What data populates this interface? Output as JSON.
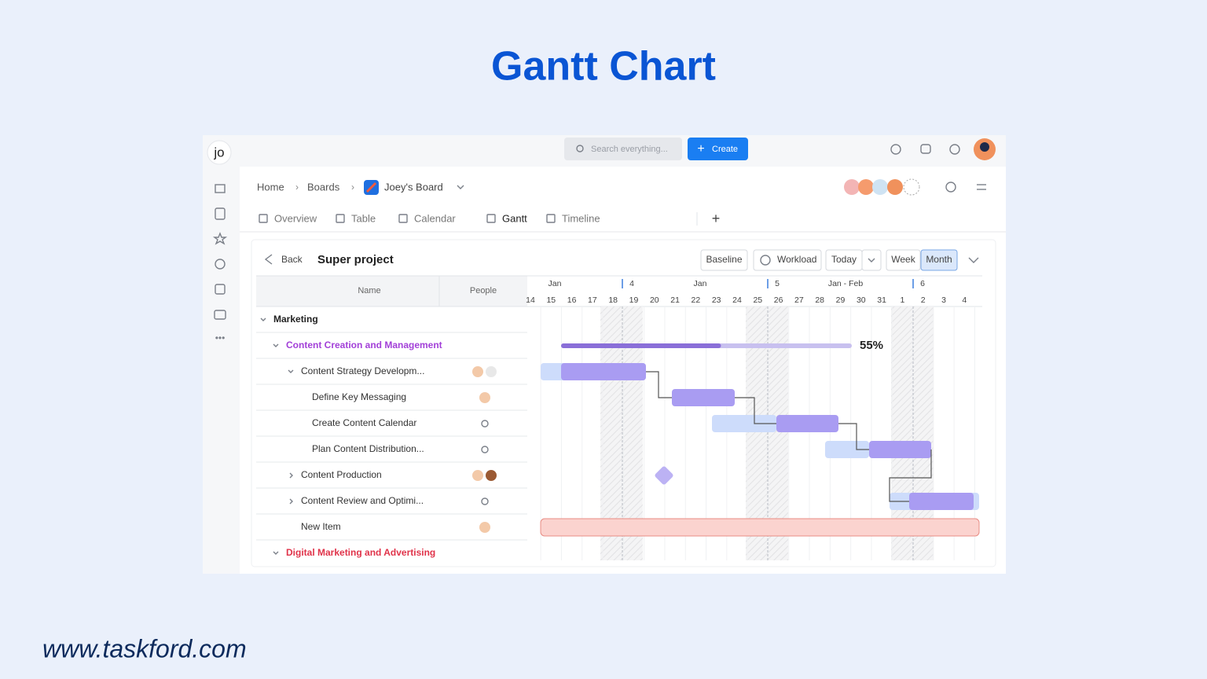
{
  "header": {
    "title": "Gantt Chart"
  },
  "footer": {
    "url": "www.taskford.com"
  },
  "app": {
    "logo": "jo",
    "search": "Search everything...",
    "create": "Create",
    "breadcrumb": [
      "Home",
      "Boards",
      "Joey's Board"
    ],
    "tabs": [
      "Overview",
      "Table",
      "Calendar",
      "Gantt",
      "Timeline"
    ],
    "toolbar": {
      "back": "Back",
      "project": "Super project",
      "buttons": [
        "Baseline",
        "Workload",
        "Today",
        "Week",
        "Month"
      ]
    },
    "columns": [
      "Name",
      "People"
    ],
    "timeline": {
      "groups": [
        {
          "month": "Jan",
          "week": "4"
        },
        {
          "month": "Jan",
          "week": "5"
        },
        {
          "month": "Jan - Feb",
          "week": "6"
        }
      ],
      "days": [
        "14",
        "15",
        "16",
        "17",
        "18",
        "19",
        "20",
        "21",
        "22",
        "23",
        "24",
        "25",
        "26",
        "27",
        "28",
        "29",
        "30",
        "31",
        "1",
        "2",
        "3",
        "4"
      ]
    },
    "rows": [
      "Marketing",
      "Content Creation and Management",
      "Content Strategy Developm...",
      "Define Key Messaging",
      "Create Content Calendar",
      "Plan Content Distribution...",
      "Content Production",
      "Content Review and Optimi...",
      "New Item",
      "Digital Marketing and Advertising"
    ],
    "progress": {
      "value": 55,
      "label": "55%"
    }
  }
}
